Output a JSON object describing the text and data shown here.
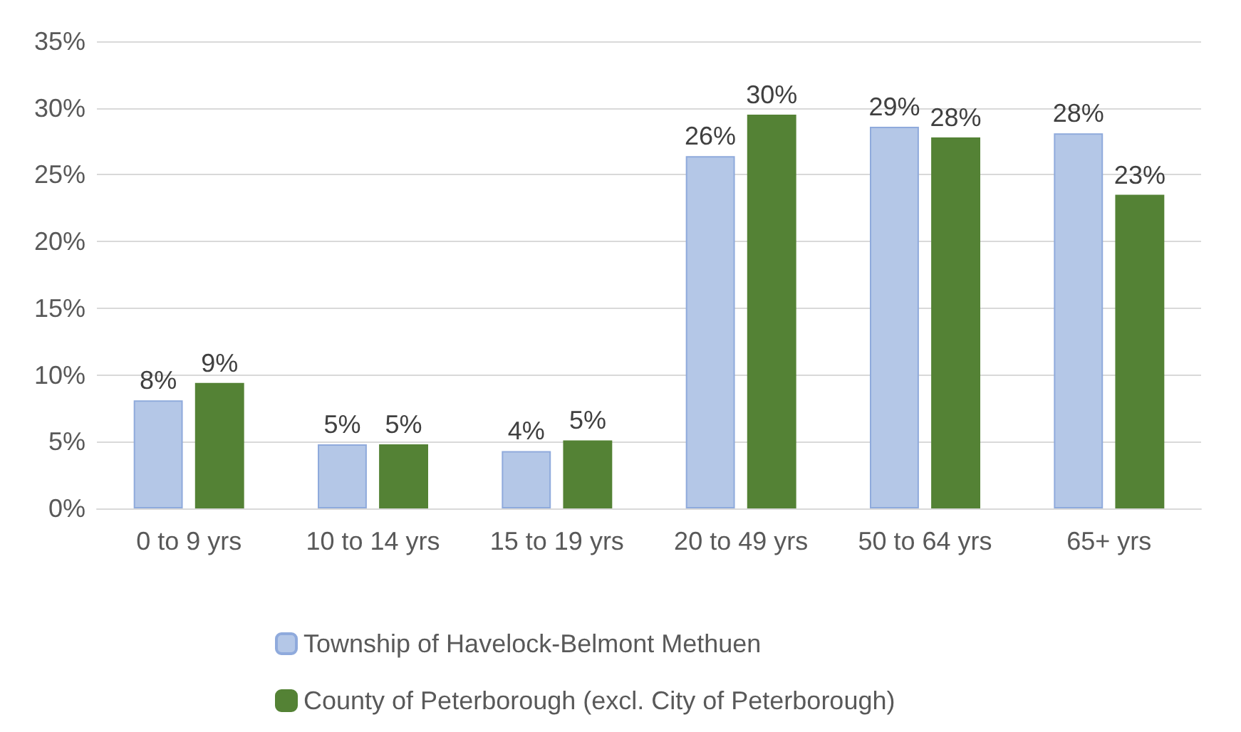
{
  "chart_data": {
    "type": "bar",
    "categories": [
      "0 to 9 yrs",
      "10 to 14 yrs",
      "15 to 19 yrs",
      "20 to 49 yrs",
      "50 to 64 yrs",
      "65+ yrs"
    ],
    "series": [
      {
        "name": "Township of Havelock-Belmont Methuen",
        "color": "#b4c7e7",
        "values": [
          8.1,
          4.8,
          4.3,
          26.4,
          28.6,
          28.1
        ],
        "value_labels": [
          "8%",
          "5%",
          "4%",
          "26%",
          "29%",
          "28%"
        ]
      },
      {
        "name": "County of Peterborough (excl. City of Peterborough)",
        "color": "#548235",
        "values": [
          9.4,
          4.8,
          5.1,
          29.5,
          27.8,
          23.5
        ],
        "value_labels": [
          "9%",
          "5%",
          "5%",
          "30%",
          "28%",
          "23%"
        ]
      }
    ],
    "ylim": [
      0,
      35
    ],
    "yticks": [
      {
        "value": 0,
        "label": "0%"
      },
      {
        "value": 5,
        "label": "5%"
      },
      {
        "value": 10,
        "label": "10%"
      },
      {
        "value": 15,
        "label": "15%"
      },
      {
        "value": 20,
        "label": "20%"
      },
      {
        "value": 25,
        "label": "25%"
      },
      {
        "value": 30,
        "label": "30%"
      },
      {
        "value": 35,
        "label": "35%"
      }
    ],
    "grid": "y",
    "legend": "bottom"
  }
}
